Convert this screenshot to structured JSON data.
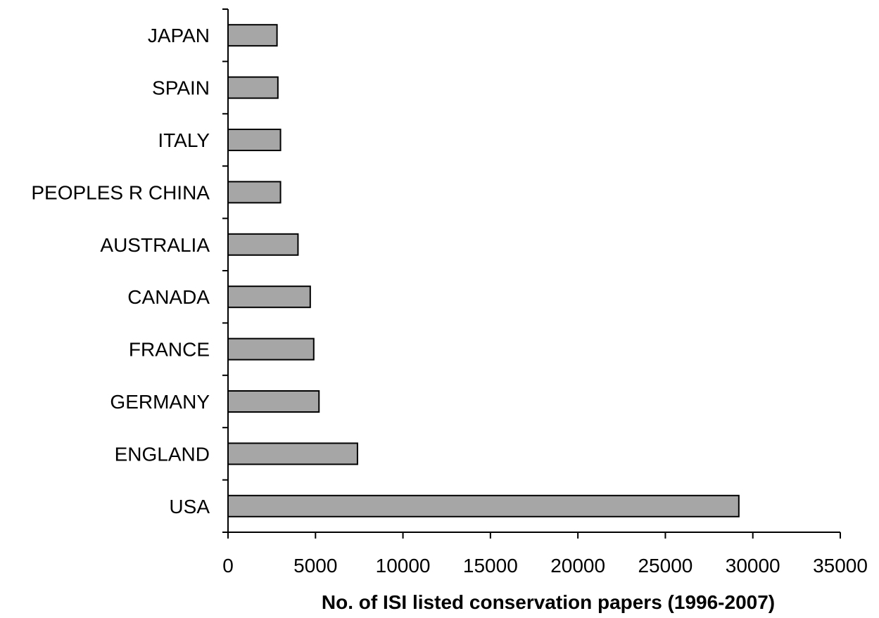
{
  "chart_data": {
    "type": "bar",
    "orientation": "horizontal",
    "categories": [
      "USA",
      "ENGLAND",
      "GERMANY",
      "FRANCE",
      "CANADA",
      "AUSTRALIA",
      "PEOPLES R CHINA",
      "ITALY",
      "SPAIN",
      "JAPAN"
    ],
    "values": [
      29200,
      7400,
      5200,
      4900,
      4700,
      4000,
      3000,
      3000,
      2850,
      2800
    ],
    "title": "",
    "xlabel": "No. of ISI listed conservation papers (1996-2007)",
    "ylabel": "",
    "xlim": [
      0,
      35000
    ],
    "xticks": [
      "0",
      "5000",
      "10000",
      "15000",
      "20000",
      "25000",
      "30000",
      "35000"
    ],
    "grid": false,
    "legend": "none",
    "bar_color": "#a6a6a6",
    "bar_edge_color": "#000000"
  }
}
